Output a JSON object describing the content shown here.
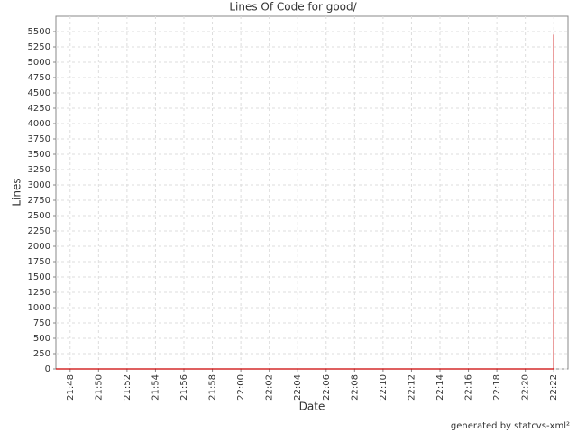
{
  "chart_data": {
    "type": "line",
    "title": "Lines Of Code for good/",
    "xlabel": "Date",
    "ylabel": "Lines",
    "x": [
      "21:47",
      "22:22",
      "22:22"
    ],
    "values": [
      0,
      0,
      5450
    ],
    "color": "#cc0000",
    "xlim": [
      "21:47",
      "22:23"
    ],
    "xticks": [
      "21:48",
      "21:50",
      "21:52",
      "21:54",
      "21:56",
      "21:58",
      "22:00",
      "22:02",
      "22:04",
      "22:06",
      "22:08",
      "22:10",
      "22:12",
      "22:14",
      "22:16",
      "22:18",
      "22:20",
      "22:22"
    ],
    "ylim": [
      0,
      5750
    ],
    "yticks": [
      0,
      250,
      500,
      750,
      1000,
      1250,
      1500,
      1750,
      2000,
      2250,
      2500,
      2750,
      3000,
      3250,
      3500,
      3750,
      4000,
      4250,
      4500,
      4750,
      5000,
      5250,
      5500
    ],
    "grid": true,
    "annotation": "generated by statcvs-xml²"
  }
}
